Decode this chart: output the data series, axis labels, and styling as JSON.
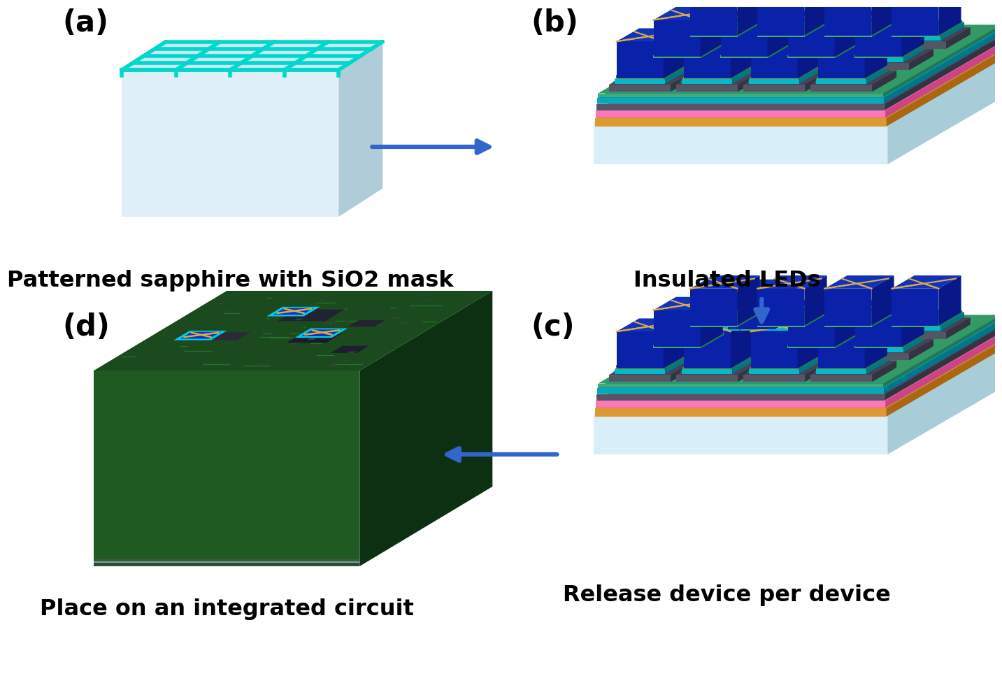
{
  "fig_width": 13.84,
  "fig_height": 9.57,
  "bg_color": "#ffffff",
  "panel_labels": [
    "(a)",
    "(b)",
    "(c)",
    "(d)"
  ],
  "panel_label_fontsize": 30,
  "panel_label_color": "#000000",
  "captions": [
    "Patterned sapphire with SiO2 mask",
    "Insulated LEDs",
    "Release device per device",
    "Place on an integrated circuit"
  ],
  "caption_fontsize": 23,
  "caption_bold": true,
  "arrow_color": "#3366cc",
  "sapphire_top": "#c0e8f0",
  "sapphire_front_light": "#d8eff8",
  "sapphire_front_dark": "#b8d8e8",
  "sapphire_side": "#a0c8d8",
  "grid_color": "#00d8cc",
  "grid_lw": 4,
  "led_blue_dark": "#0a1a88",
  "led_blue_mid": "#1133bb",
  "led_cyan_bright": "#00ccee",
  "led_cyan_mid": "#009ab0",
  "led_teal_ring": "#007a90",
  "led_gray_dark": "#333344",
  "led_gray_mid": "#555566",
  "led_green_thin": "#33bb66",
  "led_pink": "#ff66aa",
  "led_orange_dots": "#dd8833",
  "wire_gold": "#ddaa44",
  "pcb_green_dark": "#1a4a20",
  "pcb_green_mid": "#224a28",
  "pcb_green_bright": "#2a6a30",
  "pcb_edge_gray": "#8899aa"
}
